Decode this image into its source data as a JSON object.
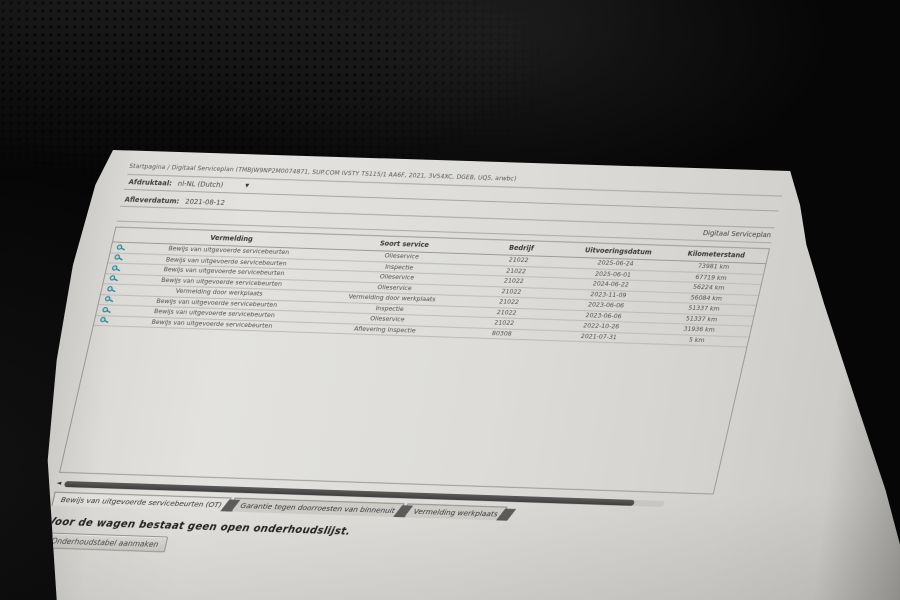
{
  "background": {
    "description": "dark perforated car-seat leather",
    "colors": {
      "base": "#060606",
      "highlight": "#232323"
    }
  },
  "document": {
    "breadcrumb": "Startpagina / Digitaal Serviceplan (TMBJW9NP2M0074871, SUP.COM IVSTY TS115/1 AA6F, 2021, 3V54XC, DGEB, UQ5, arwbc)",
    "print_language_label": "Afdruktaal:",
    "print_language_value": "nl-NL (Dutch)",
    "delivery_date_label": "Afleverdatum:",
    "delivery_date_value": "2021-08-12",
    "plan_title": "Digitaal Serviceplan",
    "table": {
      "columns": [
        "Vermelding",
        "Soort service",
        "Bedrijf",
        "Uitvoeringsdatum",
        "Kilometerstand"
      ],
      "rows": [
        {
          "vermelding": "Bewijs van uitgevoerde servicebeurten",
          "soort": "Olieservice",
          "bedrijf": "21022",
          "datum": "2025-06-24",
          "km": "73981 km"
        },
        {
          "vermelding": "Bewijs van uitgevoerde servicebeurten",
          "soort": "Inspectie",
          "bedrijf": "21022",
          "datum": "2025-06-01",
          "km": "67719 km"
        },
        {
          "vermelding": "Bewijs van uitgevoerde servicebeurten",
          "soort": "Olieservice",
          "bedrijf": "21022",
          "datum": "2024-06-22",
          "km": "56224 km"
        },
        {
          "vermelding": "Bewijs van uitgevoerde servicebeurten",
          "soort": "Olieservice",
          "bedrijf": "21022",
          "datum": "2023-11-09",
          "km": "56084 km"
        },
        {
          "vermelding": "Vermelding door werkplaats",
          "soort": "Vermelding door werkplaats",
          "bedrijf": "21022",
          "datum": "2023-06-06",
          "km": "51337 km"
        },
        {
          "vermelding": "Bewijs van uitgevoerde servicebeurten",
          "soort": "Inspectie",
          "bedrijf": "21022",
          "datum": "2023-06-06",
          "km": "51337 km"
        },
        {
          "vermelding": "Bewijs van uitgevoerde servicebeurten",
          "soort": "Olieservice",
          "bedrijf": "21022",
          "datum": "2022-10-26",
          "km": "31936 km"
        },
        {
          "vermelding": "Bewijs van uitgevoerde servicebeurten",
          "soort": "Aflevering Inspectie",
          "bedrijf": "80308",
          "datum": "2021-07-31",
          "km": "5 km"
        }
      ]
    },
    "tabs": [
      {
        "label": "Bewijs van uitgevoerde servicebeurten (OT)"
      },
      {
        "label": "Garantie tegen doorroesten van binnenuit"
      },
      {
        "label": "Vermelding werkplaats"
      }
    ],
    "no_open_list_text": "Voor de wagen bestaat geen open onderhoudslijst.",
    "create_button_label": "Onderhoudstabel aanmaken",
    "icons": {
      "row_icon": "magnifier-icon",
      "dropdown_glyph": "▼",
      "scroll_left_glyph": "◄"
    },
    "colors": {
      "paper": "#dddcd8",
      "icon_teal": "#2e8296",
      "scrollbar_thumb": "#4b4b4b",
      "hairline": "#a7a6a2"
    }
  }
}
